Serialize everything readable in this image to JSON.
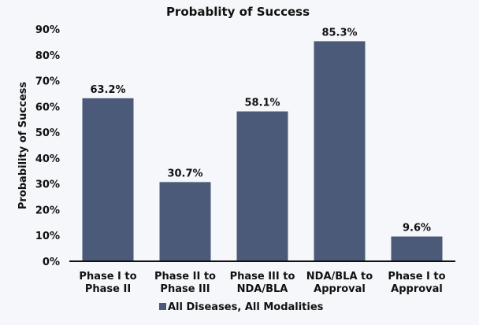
{
  "chart_data": {
    "type": "bar",
    "title": "Probablity of Success",
    "xlabel": "",
    "ylabel": "Probability of Success",
    "ylim": [
      0,
      90
    ],
    "yticks": [
      "0%",
      "10%",
      "20%",
      "30%",
      "40%",
      "50%",
      "60%",
      "70%",
      "80%",
      "90%"
    ],
    "categories": [
      [
        "Phase I to",
        "Phase II"
      ],
      [
        "Phase II to",
        "Phase III"
      ],
      [
        "Phase III to",
        "NDA/BLA"
      ],
      [
        "NDA/BLA to",
        "Approval"
      ],
      [
        "Phase I to",
        "Approval"
      ]
    ],
    "series": [
      {
        "name": "All Diseases, All Modalities",
        "values": [
          63.2,
          30.7,
          58.1,
          85.3,
          9.6
        ],
        "labels": [
          "63.2%",
          "30.7%",
          "58.1%",
          "85.3%",
          "9.6%"
        ],
        "color": "#4a5a78"
      }
    ],
    "grid": false,
    "legend": "bottom"
  }
}
